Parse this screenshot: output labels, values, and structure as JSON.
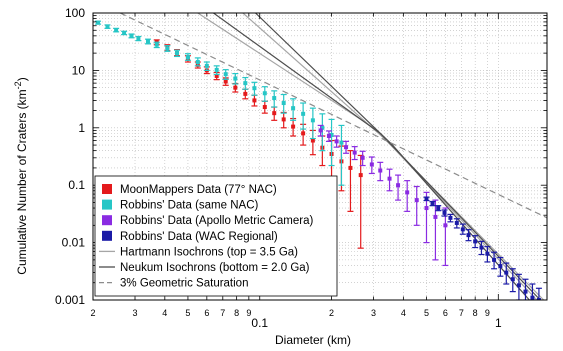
{
  "chart_data": {
    "type": "scatter",
    "xlabel": "Diameter (km)",
    "ylabel": "Cumulative Number of Craters (km",
    "ylabel_sup": "-2",
    "ylabel_close": ")",
    "xscale": "log",
    "yscale": "log",
    "xlim": [
      0.02,
      1.6
    ],
    "ylim": [
      0.001,
      100
    ],
    "grid": true,
    "legend_position": "bottom-left",
    "x_tick_labels": [
      {
        "v": 0.02,
        "t": "2",
        "kind": "minor"
      },
      {
        "v": 0.03,
        "t": "3",
        "kind": "minor"
      },
      {
        "v": 0.04,
        "t": "4",
        "kind": "minor"
      },
      {
        "v": 0.05,
        "t": "5",
        "kind": "minor"
      },
      {
        "v": 0.06,
        "t": "6",
        "kind": "minor"
      },
      {
        "v": 0.07,
        "t": "7",
        "kind": "minor"
      },
      {
        "v": 0.08,
        "t": "8",
        "kind": "minor"
      },
      {
        "v": 0.09,
        "t": "9",
        "kind": "minor"
      },
      {
        "v": 0.1,
        "t": "0.1",
        "kind": "major"
      },
      {
        "v": 0.2,
        "t": "2",
        "kind": "minor"
      },
      {
        "v": 0.3,
        "t": "3",
        "kind": "minor"
      },
      {
        "v": 0.4,
        "t": "4",
        "kind": "minor"
      },
      {
        "v": 0.5,
        "t": "5",
        "kind": "minor"
      },
      {
        "v": 0.6,
        "t": "6",
        "kind": "minor"
      },
      {
        "v": 0.7,
        "t": "7",
        "kind": "minor"
      },
      {
        "v": 0.8,
        "t": "8",
        "kind": "minor"
      },
      {
        "v": 0.9,
        "t": "9",
        "kind": "minor"
      },
      {
        "v": 1,
        "t": "1",
        "kind": "major"
      }
    ],
    "y_tick_labels": [
      {
        "v": 100,
        "t": "100"
      },
      {
        "v": 10,
        "t": "10"
      },
      {
        "v": 1,
        "t": "1"
      },
      {
        "v": 0.1,
        "t": "0.1"
      },
      {
        "v": 0.01,
        "t": "0.01"
      },
      {
        "v": 0.001,
        "t": "0.001"
      }
    ],
    "series": [
      {
        "name": "MoonMappers Data (77° NAC)",
        "kind": "errorbar",
        "color": "#e41a1c",
        "points": [
          {
            "x": 0.037,
            "y": 31,
            "lo": 28,
            "hi": 34
          },
          {
            "x": 0.041,
            "y": 25,
            "lo": 22,
            "hi": 28
          },
          {
            "x": 0.045,
            "y": 20,
            "lo": 18,
            "hi": 23
          },
          {
            "x": 0.05,
            "y": 16,
            "lo": 14,
            "hi": 18
          },
          {
            "x": 0.055,
            "y": 12.5,
            "lo": 11,
            "hi": 14
          },
          {
            "x": 0.06,
            "y": 10,
            "lo": 8.8,
            "hi": 11.5
          },
          {
            "x": 0.066,
            "y": 8,
            "lo": 6.9,
            "hi": 9.2
          },
          {
            "x": 0.072,
            "y": 6.4,
            "lo": 5.5,
            "hi": 7.4
          },
          {
            "x": 0.079,
            "y": 5.0,
            "lo": 4.2,
            "hi": 5.9
          },
          {
            "x": 0.087,
            "y": 3.9,
            "lo": 3.2,
            "hi": 4.7
          },
          {
            "x": 0.095,
            "y": 3.0,
            "lo": 2.4,
            "hi": 3.7
          },
          {
            "x": 0.105,
            "y": 2.3,
            "lo": 1.8,
            "hi": 2.9
          },
          {
            "x": 0.115,
            "y": 1.8,
            "lo": 1.35,
            "hi": 2.3
          },
          {
            "x": 0.126,
            "y": 1.4,
            "lo": 1.0,
            "hi": 1.85
          },
          {
            "x": 0.138,
            "y": 1.05,
            "lo": 0.72,
            "hi": 1.45
          },
          {
            "x": 0.152,
            "y": 0.8,
            "lo": 0.5,
            "hi": 1.15
          },
          {
            "x": 0.167,
            "y": 0.6,
            "lo": 0.34,
            "hi": 0.9
          },
          {
            "x": 0.183,
            "y": 0.45,
            "lo": 0.22,
            "hi": 0.72
          },
          {
            "x": 0.2,
            "y": 0.35,
            "lo": 0.14,
            "hi": 0.6
          },
          {
            "x": 0.22,
            "y": 0.26,
            "lo": 0.08,
            "hi": 0.48
          },
          {
            "x": 0.24,
            "y": 0.2,
            "lo": 0.035,
            "hi": 0.4
          },
          {
            "x": 0.265,
            "y": 0.15,
            "lo": 0.008,
            "hi": 0.33
          }
        ]
      },
      {
        "name": "Robbins' Data (same NAC)",
        "kind": "errorbar",
        "color": "#26c6c6",
        "points": [
          {
            "x": 0.021,
            "y": 68,
            "lo": 64,
            "hi": 72
          },
          {
            "x": 0.023,
            "y": 58,
            "lo": 54,
            "hi": 62
          },
          {
            "x": 0.025,
            "y": 50,
            "lo": 47,
            "hi": 54
          },
          {
            "x": 0.027,
            "y": 45,
            "lo": 42,
            "hi": 48
          },
          {
            "x": 0.029,
            "y": 40,
            "lo": 37,
            "hi": 43
          },
          {
            "x": 0.031,
            "y": 36,
            "lo": 33,
            "hi": 39
          },
          {
            "x": 0.034,
            "y": 32,
            "lo": 29,
            "hi": 35
          },
          {
            "x": 0.037,
            "y": 28,
            "lo": 25,
            "hi": 31
          },
          {
            "x": 0.041,
            "y": 24,
            "lo": 21.5,
            "hi": 27
          },
          {
            "x": 0.045,
            "y": 20,
            "lo": 17.5,
            "hi": 22.5
          },
          {
            "x": 0.05,
            "y": 17,
            "lo": 15,
            "hi": 19.5
          },
          {
            "x": 0.055,
            "y": 14,
            "lo": 12,
            "hi": 16.5
          },
          {
            "x": 0.06,
            "y": 12,
            "lo": 10,
            "hi": 14
          },
          {
            "x": 0.066,
            "y": 10.2,
            "lo": 8.5,
            "hi": 12
          },
          {
            "x": 0.072,
            "y": 8.6,
            "lo": 7,
            "hi": 10.3
          },
          {
            "x": 0.079,
            "y": 7.2,
            "lo": 5.8,
            "hi": 8.8
          },
          {
            "x": 0.087,
            "y": 6.0,
            "lo": 4.7,
            "hi": 7.5
          },
          {
            "x": 0.095,
            "y": 4.9,
            "lo": 3.7,
            "hi": 6.2
          },
          {
            "x": 0.105,
            "y": 4.0,
            "lo": 2.9,
            "hi": 5.2
          },
          {
            "x": 0.115,
            "y": 3.3,
            "lo": 2.3,
            "hi": 4.4
          },
          {
            "x": 0.126,
            "y": 2.7,
            "lo": 1.8,
            "hi": 3.8
          },
          {
            "x": 0.138,
            "y": 2.2,
            "lo": 1.35,
            "hi": 3.2
          },
          {
            "x": 0.152,
            "y": 1.75,
            "lo": 0.95,
            "hi": 2.7
          },
          {
            "x": 0.167,
            "y": 1.35,
            "lo": 0.65,
            "hi": 2.2
          },
          {
            "x": 0.183,
            "y": 1.0,
            "lo": 0.4,
            "hi": 1.75
          },
          {
            "x": 0.2,
            "y": 0.75,
            "lo": 0.22,
            "hi": 1.4
          },
          {
            "x": 0.22,
            "y": 0.55,
            "lo": 0.1,
            "hi": 1.1
          }
        ]
      },
      {
        "name": "Robbins' Data (Apollo Metric Camera)",
        "kind": "errorbar",
        "color": "#8a2be2",
        "points": [
          {
            "x": 0.18,
            "y": 0.9,
            "lo": 0.72,
            "hi": 1.1
          },
          {
            "x": 0.195,
            "y": 0.72,
            "lo": 0.58,
            "hi": 0.88
          },
          {
            "x": 0.21,
            "y": 0.58,
            "lo": 0.46,
            "hi": 0.72
          },
          {
            "x": 0.23,
            "y": 0.46,
            "lo": 0.36,
            "hi": 0.58
          },
          {
            "x": 0.25,
            "y": 0.37,
            "lo": 0.28,
            "hi": 0.47
          },
          {
            "x": 0.27,
            "y": 0.3,
            "lo": 0.22,
            "hi": 0.39
          },
          {
            "x": 0.295,
            "y": 0.23,
            "lo": 0.16,
            "hi": 0.31
          },
          {
            "x": 0.32,
            "y": 0.18,
            "lo": 0.12,
            "hi": 0.25
          },
          {
            "x": 0.35,
            "y": 0.13,
            "lo": 0.08,
            "hi": 0.19
          },
          {
            "x": 0.38,
            "y": 0.1,
            "lo": 0.055,
            "hi": 0.15
          },
          {
            "x": 0.415,
            "y": 0.075,
            "lo": 0.035,
            "hi": 0.12
          },
          {
            "x": 0.455,
            "y": 0.055,
            "lo": 0.02,
            "hi": 0.095
          },
          {
            "x": 0.5,
            "y": 0.04,
            "lo": 0.01,
            "hi": 0.075
          },
          {
            "x": 0.545,
            "y": 0.028,
            "lo": 0.005,
            "hi": 0.055
          },
          {
            "x": 0.6,
            "y": 0.02,
            "lo": 0.004,
            "hi": 0.04
          }
        ]
      },
      {
        "name": "Robbins' Data (WAC Regional)",
        "kind": "errorbar",
        "color": "#1a1aa6",
        "points": [
          {
            "x": 0.5,
            "y": 0.058,
            "lo": 0.054,
            "hi": 0.062
          },
          {
            "x": 0.53,
            "y": 0.048,
            "lo": 0.044,
            "hi": 0.052
          },
          {
            "x": 0.56,
            "y": 0.04,
            "lo": 0.036,
            "hi": 0.044
          },
          {
            "x": 0.595,
            "y": 0.033,
            "lo": 0.029,
            "hi": 0.037
          },
          {
            "x": 0.63,
            "y": 0.027,
            "lo": 0.023,
            "hi": 0.031
          },
          {
            "x": 0.67,
            "y": 0.022,
            "lo": 0.018,
            "hi": 0.026
          },
          {
            "x": 0.71,
            "y": 0.017,
            "lo": 0.014,
            "hi": 0.021
          },
          {
            "x": 0.75,
            "y": 0.0135,
            "lo": 0.0108,
            "hi": 0.0168
          },
          {
            "x": 0.8,
            "y": 0.0105,
            "lo": 0.0082,
            "hi": 0.0132
          },
          {
            "x": 0.85,
            "y": 0.0082,
            "lo": 0.0062,
            "hi": 0.0105
          },
          {
            "x": 0.9,
            "y": 0.0064,
            "lo": 0.0046,
            "hi": 0.0085
          },
          {
            "x": 0.96,
            "y": 0.005,
            "lo": 0.0035,
            "hi": 0.0068
          },
          {
            "x": 1.02,
            "y": 0.0039,
            "lo": 0.0026,
            "hi": 0.0055
          },
          {
            "x": 1.08,
            "y": 0.003,
            "lo": 0.0019,
            "hi": 0.0044
          },
          {
            "x": 1.15,
            "y": 0.0023,
            "lo": 0.0014,
            "hi": 0.0035
          },
          {
            "x": 1.22,
            "y": 0.0018,
            "lo": 0.001,
            "hi": 0.0028
          },
          {
            "x": 1.3,
            "y": 0.0014,
            "lo": 0.001,
            "hi": 0.0023
          },
          {
            "x": 1.39,
            "y": 0.0011,
            "lo": 0.001,
            "hi": 0.0019
          },
          {
            "x": 1.48,
            "y": 0.001,
            "lo": 0.001,
            "hi": 0.0016
          }
        ]
      },
      {
        "name": "Hartmann Isochrons (top = 3.5 Ga)",
        "kind": "line",
        "color": "#a6a6a6",
        "dash": "",
        "lines": [
          [
            [
              0.055,
              100
            ],
            [
              0.3,
              1.0
            ],
            [
              1.55,
              0.001
            ]
          ],
          [
            [
              0.085,
              100
            ],
            [
              0.34,
              0.6
            ],
            [
              1.45,
              0.001
            ]
          ]
        ]
      },
      {
        "name": "Neukum Isochrons (bottom = 2.0 Ga)",
        "kind": "line",
        "color": "#4d4d4d",
        "dash": "",
        "lines": [
          [
            [
              0.064,
              100
            ],
            [
              0.32,
              0.8
            ],
            [
              1.5,
              0.001
            ]
          ],
          [
            [
              0.096,
              100
            ],
            [
              0.36,
              0.5
            ],
            [
              1.35,
              0.001
            ]
          ]
        ]
      },
      {
        "name": "3% Geometric Saturation",
        "kind": "line",
        "color": "#8c8c8c",
        "dash": "6,4",
        "lines": [
          [
            [
              0.026,
              100
            ],
            [
              1.6,
              0.027
            ]
          ]
        ]
      }
    ]
  }
}
